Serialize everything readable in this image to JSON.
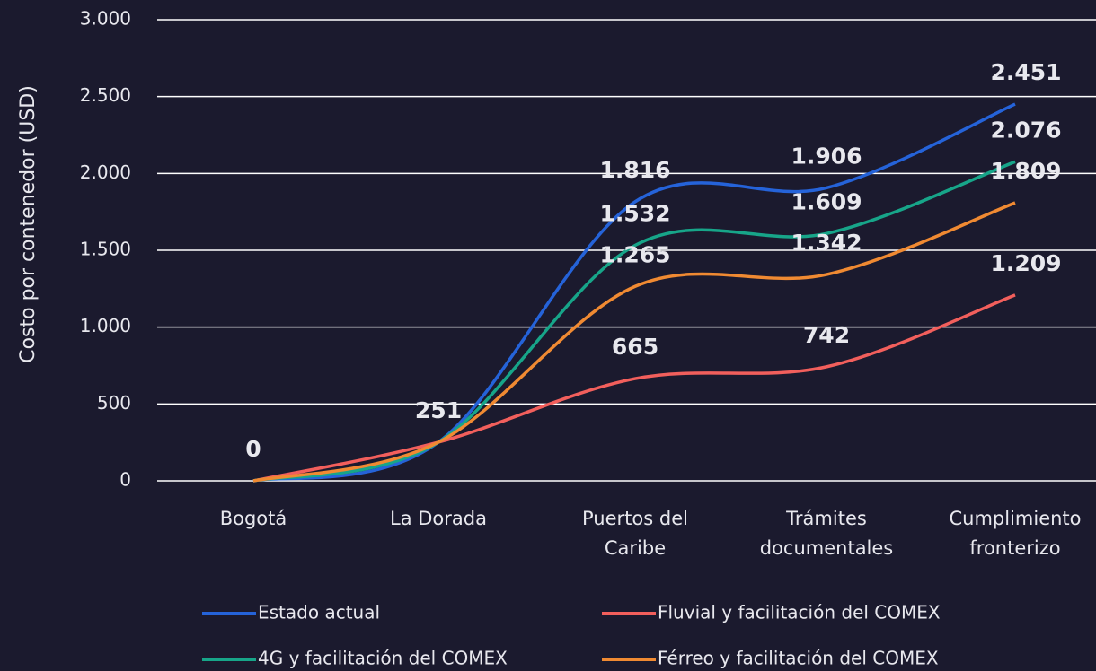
{
  "chart_data": {
    "type": "line",
    "y_label": "Costo por contenedor (USD)",
    "categories": [
      "Bogotá",
      "La Dorada",
      "Puertos del Caribe",
      "Trámites documentales",
      "Cumplimiento fronterizo"
    ],
    "ylim": [
      0,
      3000
    ],
    "yticks": [
      0,
      500,
      {
        "value": 1000,
        "label": "1.000"
      },
      {
        "value": 1500,
        "label": "1.500"
      },
      {
        "value": 2000,
        "label": "2.000"
      },
      {
        "value": 2500,
        "label": "2.500"
      },
      {
        "value": 3000,
        "label": "3.000"
      }
    ],
    "grid": true,
    "series": [
      {
        "name": "Estado actual",
        "color": "#2563d9",
        "values": [
          0,
          251,
          1816,
          1906,
          2451
        ],
        "value_labels": [
          "0",
          "251",
          "1.816",
          "1.906",
          "2.451"
        ]
      },
      {
        "name": "Fluvial y facilitación del COMEX",
        "color": "#f25f5c",
        "values": [
          0,
          251,
          665,
          742,
          1209
        ],
        "value_labels": [
          null,
          null,
          "665",
          "742",
          "1.209"
        ]
      },
      {
        "name": "4G y facilitación del COMEX",
        "color": "#17a589",
        "values": [
          0,
          251,
          1532,
          1609,
          2076
        ],
        "value_labels": [
          null,
          null,
          "1.532",
          "1.609",
          "2.076"
        ]
      },
      {
        "name": "Férreo y facilitación del COMEX",
        "color": "#f08a32",
        "values": [
          0,
          251,
          1265,
          1342,
          1809
        ],
        "value_labels": [
          null,
          null,
          "1.265",
          "1.342",
          "1.809"
        ]
      }
    ]
  }
}
